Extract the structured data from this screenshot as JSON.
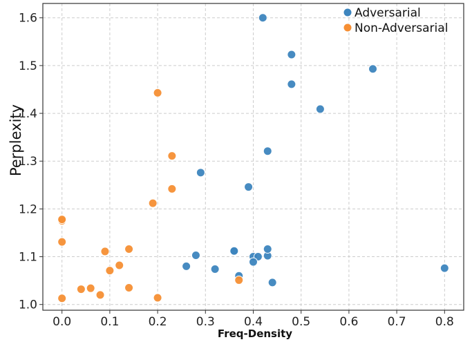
{
  "chart_data": {
    "type": "scatter",
    "title": "",
    "xlabel": "Freq-Density",
    "ylabel": "Perplexity",
    "xlim": [
      -0.04,
      0.84
    ],
    "ylim": [
      0.988,
      1.63
    ],
    "xticks": [
      0.0,
      0.1,
      0.2,
      0.3,
      0.4,
      0.5,
      0.6,
      0.7,
      0.8
    ],
    "xtick_labels": [
      "0.0",
      "0.1",
      "0.2",
      "0.3",
      "0.4",
      "0.5",
      "0.6",
      "0.7",
      "0.8"
    ],
    "yticks": [
      1.0,
      1.1,
      1.2,
      1.3,
      1.4,
      1.5,
      1.6
    ],
    "ytick_labels": [
      "1.0",
      "1.1",
      "1.2",
      "1.3",
      "1.4",
      "1.5",
      "1.6"
    ],
    "grid": true,
    "legend_position": "top-right",
    "series": [
      {
        "name": "Adversarial",
        "color": "#3d85be",
        "points": [
          [
            0.42,
            1.6
          ],
          [
            0.48,
            1.523
          ],
          [
            0.65,
            1.493
          ],
          [
            0.48,
            1.461
          ],
          [
            0.54,
            1.409
          ],
          [
            0.43,
            1.321
          ],
          [
            0.29,
            1.276
          ],
          [
            0.39,
            1.246
          ],
          [
            0.26,
            1.08
          ],
          [
            0.28,
            1.103
          ],
          [
            0.32,
            1.074
          ],
          [
            0.36,
            1.111
          ],
          [
            0.36,
            1.112
          ],
          [
            0.37,
            1.06
          ],
          [
            0.4,
            1.1
          ],
          [
            0.41,
            1.1
          ],
          [
            0.4,
            1.089
          ],
          [
            0.43,
            1.102
          ],
          [
            0.43,
            1.116
          ],
          [
            0.44,
            1.046
          ],
          [
            0.8,
            1.076
          ]
        ]
      },
      {
        "name": "Non-Adversarial",
        "color": "#f68f34",
        "points": [
          [
            0.2,
            1.443
          ],
          [
            0.23,
            1.311
          ],
          [
            0.23,
            1.242
          ],
          [
            0.19,
            1.212
          ],
          [
            0.0,
            1.175
          ],
          [
            0.0,
            1.178
          ],
          [
            0.0,
            1.131
          ],
          [
            0.09,
            1.111
          ],
          [
            0.14,
            1.116
          ],
          [
            0.12,
            1.082
          ],
          [
            0.1,
            1.071
          ],
          [
            0.04,
            1.032
          ],
          [
            0.06,
            1.034
          ],
          [
            0.08,
            1.02
          ],
          [
            0.14,
            1.035
          ],
          [
            0.0,
            1.013
          ],
          [
            0.2,
            1.014
          ],
          [
            0.37,
            1.051
          ]
        ]
      }
    ]
  }
}
